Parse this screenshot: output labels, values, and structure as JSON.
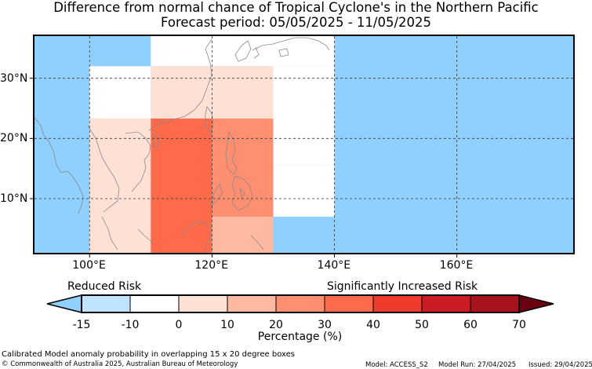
{
  "header": {
    "title": "Difference from normal chance of Tropical Cyclone's in the Northern Pacific",
    "period": "Forecast period: 05/05/2025 - 11/05/2025"
  },
  "map": {
    "lon_range": [
      91,
      179
    ],
    "lat_range": [
      1,
      37
    ],
    "x_ticks": [
      {
        "lon": 100,
        "label": "100°E"
      },
      {
        "lon": 120,
        "label": "120°E"
      },
      {
        "lon": 140,
        "label": "140°E"
      },
      {
        "lon": 160,
        "label": "160°E"
      }
    ],
    "y_ticks": [
      {
        "lat": 30,
        "label": "30°N"
      },
      {
        "lat": 20,
        "label": "20°N"
      },
      {
        "lat": 10,
        "label": "10°N"
      }
    ],
    "background_class": "-15",
    "cells": [
      {
        "lon": [
          91,
          100
        ],
        "lat": [
          1,
          37
        ],
        "class": "-15"
      },
      {
        "lon": [
          100,
          110
        ],
        "lat": [
          32,
          37
        ],
        "class": "-15"
      },
      {
        "lon": [
          100,
          110
        ],
        "lat": [
          23.3,
          32
        ],
        "class": "-10"
      },
      {
        "lon": [
          100,
          110
        ],
        "lat": [
          1,
          23.3
        ],
        "class": "0"
      },
      {
        "lon": [
          110,
          120
        ],
        "lat": [
          32,
          37
        ],
        "class": "-10"
      },
      {
        "lon": [
          110,
          120
        ],
        "lat": [
          23.3,
          32
        ],
        "class": "0"
      },
      {
        "lon": [
          110,
          120
        ],
        "lat": [
          1,
          23.3
        ],
        "class": "30"
      },
      {
        "lon": [
          120,
          130
        ],
        "lat": [
          32,
          37
        ],
        "class": "-15-white"
      },
      {
        "lon": [
          120,
          130
        ],
        "lat": [
          23.3,
          32
        ],
        "class": "0"
      },
      {
        "lon": [
          120,
          130
        ],
        "lat": [
          7,
          23.3
        ],
        "class": "20"
      },
      {
        "lon": [
          120,
          130
        ],
        "lat": [
          1,
          7
        ],
        "class": "10"
      },
      {
        "lon": [
          130,
          140
        ],
        "lat": [
          32,
          37
        ],
        "class": "-15-white"
      },
      {
        "lon": [
          130,
          140
        ],
        "lat": [
          15.5,
          32
        ],
        "class": "-15-white"
      },
      {
        "lon": [
          130,
          140
        ],
        "lat": [
          7,
          15.5
        ],
        "class": "-10"
      },
      {
        "lon": [
          130,
          140
        ],
        "lat": [
          1,
          7
        ],
        "class": "-15"
      }
    ]
  },
  "legend": {
    "reduced_label": "Reduced Risk",
    "increased_label": "Significantly Increased Risk",
    "title": "Percentage (%)",
    "ticks": [
      "-15",
      "-10",
      "0",
      "10",
      "20",
      "30",
      "40",
      "50",
      "60",
      "70"
    ],
    "colors": {
      "under": "#8fd0ff",
      "bins": [
        "#bfe4ff",
        "#ffffff",
        "#ffe0d5",
        "#ffb9a0",
        "#ff8f70",
        "#ff6a4a",
        "#ee3b2c",
        "#cc1b22",
        "#a8121c"
      ],
      "over": "#6b0010"
    }
  },
  "footer": {
    "note": "Calibrated Model anomaly probability in overlapping 15 x 20 degree boxes",
    "copyright": "© Commonwealth of Australia 2025, Australian Bureau of Meteorology",
    "model": "Model: ACCESS_S2",
    "model_run": "Model Run: 27/04/2025",
    "issued": "Issued: 29/04/2025"
  }
}
